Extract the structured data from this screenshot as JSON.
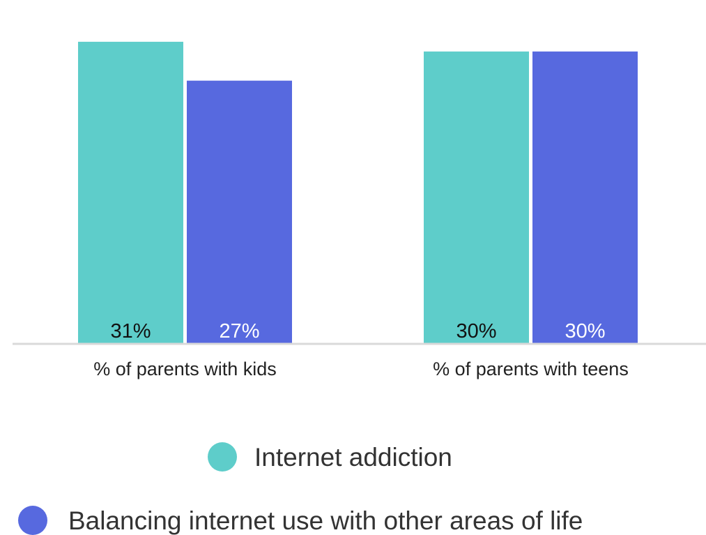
{
  "chart_data": {
    "type": "bar",
    "categories": [
      "% of parents with kids",
      "% of parents with teens"
    ],
    "series": [
      {
        "name": "Internet addiction",
        "color": "#5ecdca",
        "values": [
          31,
          30
        ],
        "labels": [
          "31%",
          "30%"
        ],
        "label_color": "#111111"
      },
      {
        "name": "Balancing internet use with other areas of life",
        "color": "#5769df",
        "values": [
          27,
          30
        ],
        "labels": [
          "27%",
          "30%"
        ],
        "label_color": "#ffffff"
      }
    ],
    "ylim": [
      0,
      33
    ],
    "grid": false,
    "legend_position": "bottom"
  }
}
